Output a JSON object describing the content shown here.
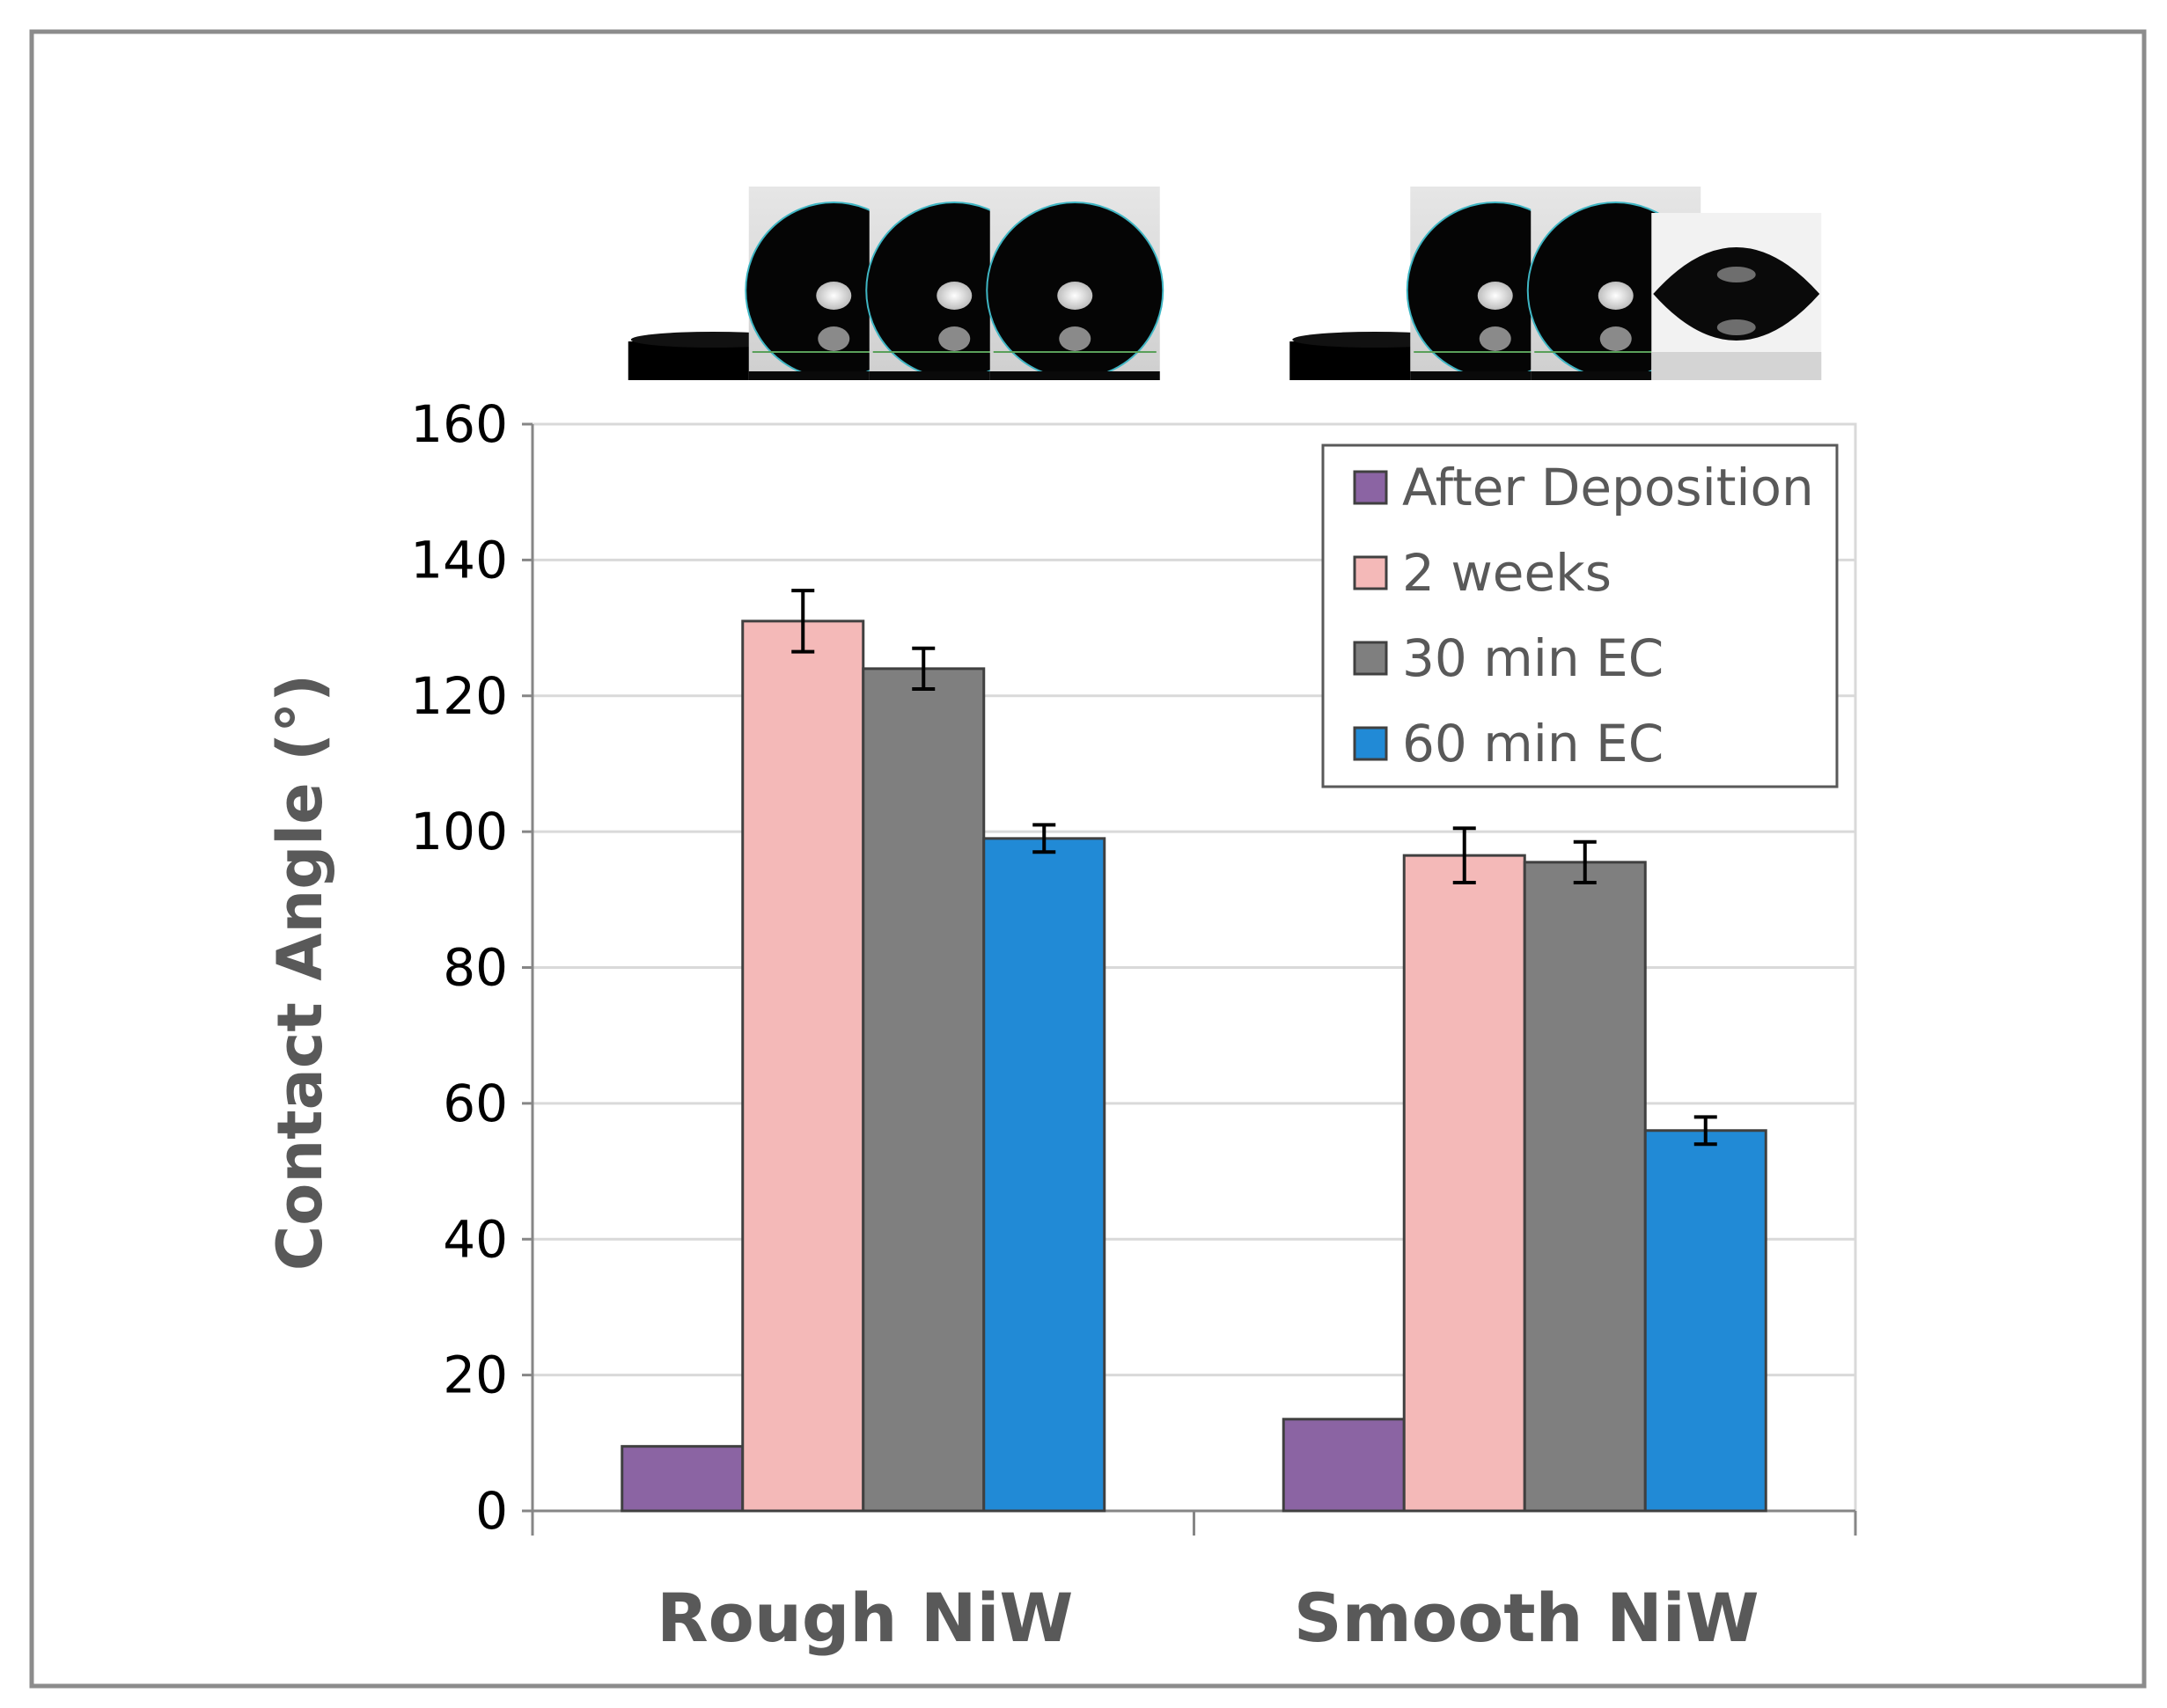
{
  "colors": {
    "frame": "#8c8c8c",
    "grid": "#d9d9d9",
    "axis": "#868686",
    "bar_outline": "#404040",
    "error_bar": "#000000"
  },
  "chart_data": {
    "type": "bar",
    "title": "",
    "xlabel": "",
    "ylabel": "Contact Angle (°)",
    "ylim": [
      0,
      160
    ],
    "yticks": [
      0,
      20,
      40,
      60,
      80,
      100,
      120,
      140,
      160
    ],
    "grid": true,
    "legend_position": "top-right",
    "categories": [
      "Rough NiW",
      "Smooth NiW"
    ],
    "series": [
      {
        "name": "After Deposition",
        "color": "#8b64a3",
        "values": [
          9.5,
          13.5
        ],
        "errors": [
          0,
          0
        ]
      },
      {
        "name": "2 weeks",
        "color": "#f4b9b8",
        "values": [
          131,
          96.5
        ],
        "errors": [
          4.5,
          4
        ]
      },
      {
        "name": "30 min EC",
        "color": "#7f7f7f",
        "values": [
          124,
          95.5
        ],
        "errors": [
          3,
          3
        ]
      },
      {
        "name": "60 min EC",
        "color": "#218ad6",
        "values": [
          99,
          56
        ],
        "errors": [
          2,
          2
        ]
      }
    ],
    "droplet_images": [
      {
        "category": "Rough NiW",
        "series": "After Deposition",
        "shape": "flat"
      },
      {
        "category": "Rough NiW",
        "series": "2 weeks",
        "shape": "sphere"
      },
      {
        "category": "Rough NiW",
        "series": "30 min EC",
        "shape": "sphere"
      },
      {
        "category": "Rough NiW",
        "series": "60 min EC",
        "shape": "sphere"
      },
      {
        "category": "Smooth NiW",
        "series": "After Deposition",
        "shape": "flat"
      },
      {
        "category": "Smooth NiW",
        "series": "2 weeks",
        "shape": "sphere"
      },
      {
        "category": "Smooth NiW",
        "series": "30 min EC",
        "shape": "sphere"
      },
      {
        "category": "Smooth NiW",
        "series": "60 min EC",
        "shape": "lens"
      }
    ]
  }
}
